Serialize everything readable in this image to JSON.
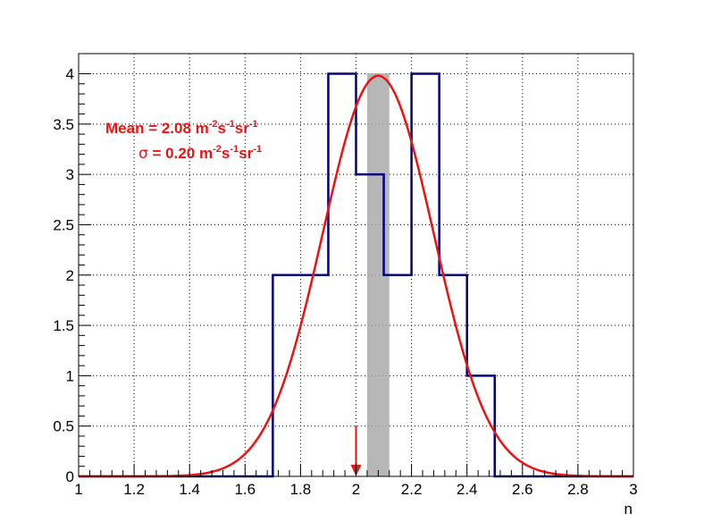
{
  "chart_data": {
    "type": "bar",
    "xlabel": "n",
    "ylabel": "",
    "xlim": [
      1,
      3
    ],
    "ylim": [
      0,
      4.2
    ],
    "grid": true,
    "x_ticks": [
      "1",
      "1.2",
      "1.4",
      "1.6",
      "1.8",
      "2",
      "2.2",
      "2.4",
      "2.6",
      "2.8",
      "3"
    ],
    "y_ticks": [
      "0",
      "0.5",
      "1",
      "1.5",
      "2",
      "2.5",
      "3",
      "3.5",
      "4"
    ],
    "histogram": {
      "color": "#000080",
      "bins": [
        {
          "x0": 1.7,
          "x1": 1.8,
          "count": 2
        },
        {
          "x0": 1.8,
          "x1": 1.9,
          "count": 2
        },
        {
          "x0": 1.9,
          "x1": 2.0,
          "count": 4
        },
        {
          "x0": 2.0,
          "x1": 2.1,
          "count": 3
        },
        {
          "x0": 2.1,
          "x1": 2.2,
          "count": 2
        },
        {
          "x0": 2.2,
          "x1": 2.3,
          "count": 4
        },
        {
          "x0": 2.3,
          "x1": 2.4,
          "count": 2
        },
        {
          "x0": 2.4,
          "x1": 2.5,
          "count": 1
        }
      ]
    },
    "gaussian_fit": {
      "color": "#ee1111",
      "mean": 2.08,
      "sigma": 0.2,
      "amplitude": 3.98
    },
    "shaded_band": {
      "x0": 2.04,
      "x1": 2.12,
      "color": "#aaaaaa"
    },
    "marker_arrow": {
      "x": 2.0,
      "y_top": 0.5,
      "color": "#ee1111"
    },
    "annotations": {
      "color": "#ee1111",
      "mean_prefix": "Mean = 2.08 m",
      "sigma_symbol": "σ",
      "sigma_prefix": " = 0.20 m",
      "sup_m": "-2",
      "s_char": "s",
      "sup_s": "-1",
      "sr_char": "sr",
      "sup_sr": "-1"
    }
  }
}
